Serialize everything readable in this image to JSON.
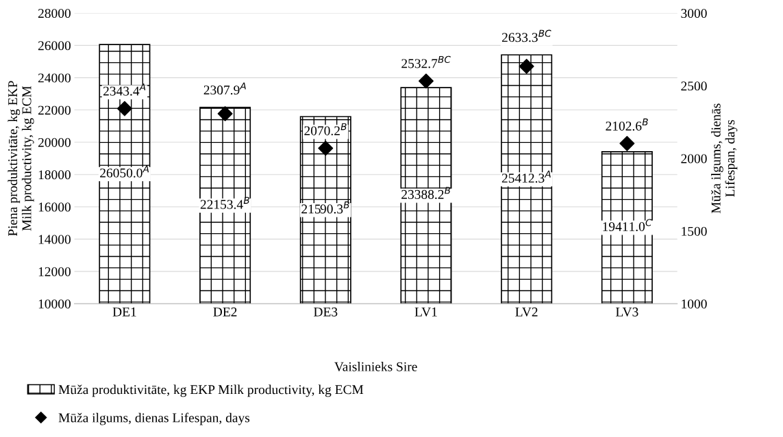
{
  "chart_data": {
    "type": "bar",
    "categories": [
      "DE1",
      "DE2",
      "DE3",
      "LV1",
      "LV2",
      "LV3"
    ],
    "xlabel": "Vaislinieks Sire",
    "ylabel": "Piena produktivitāte, kg EKP\nMilk productivity, kg ECM",
    "y2label": "Mūža ilgums, dienās\nLifespan, days",
    "series": [
      {
        "name": "Mūža produktivitāte, kg EKP Milk productivity, kg ECM",
        "color": "#000000",
        "values": [
          26050.0,
          22153.4,
          21590.3,
          23388.2,
          25412.3,
          19411.0
        ],
        "value_labels": [
          "26050.0$^{A}$",
          "22153.4$^{B}$",
          "21590.3$^{B}$",
          "23388.2$^{B}$",
          "25412.3$^{A}$",
          "19411.0$^{C}$"
        ]
      },
      {
        "name": "Mūža ilgums, dienas Lifespan, days",
        "type": "scatter",
        "axis": "y2",
        "marker": "diamond",
        "color": "#000000",
        "values": [
          2343.4,
          2307.9,
          2070.2,
          2532.7,
          2633.3,
          2102.6
        ],
        "value_labels": [
          "2343.4$^{A}$",
          "2307.9$^{A}$",
          "2070.2$^{B}$",
          "2532.7$^{BC}$",
          "2633.3$^{BC}$",
          "2102.6$^{B}$"
        ]
      }
    ],
    "ylim": [
      10000,
      28000
    ],
    "yticks": [
      10000,
      12000,
      14000,
      16000,
      18000,
      20000,
      22000,
      24000,
      26000,
      28000
    ],
    "y2lim": [
      1000,
      3000
    ],
    "y2ticks": [
      1000,
      1500,
      2000,
      2500,
      3000
    ],
    "grid": "y",
    "legend": "bottom"
  }
}
